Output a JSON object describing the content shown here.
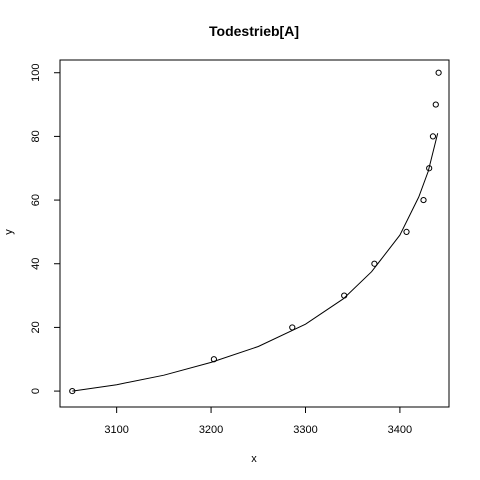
{
  "chart_data": {
    "type": "scatter",
    "title": "Todestrieb[A]",
    "xlabel": "x",
    "ylabel": "y",
    "xlim": [
      3040,
      3452
    ],
    "ylim": [
      -5,
      104
    ],
    "x_ticks": [
      3100,
      3200,
      3300,
      3400
    ],
    "y_ticks": [
      0,
      20,
      40,
      60,
      80,
      100
    ],
    "points": [
      {
        "x": 3053,
        "y": 0
      },
      {
        "x": 3203,
        "y": 10
      },
      {
        "x": 3286,
        "y": 20
      },
      {
        "x": 3341,
        "y": 30
      },
      {
        "x": 3373,
        "y": 40
      },
      {
        "x": 3407,
        "y": 50
      },
      {
        "x": 3425,
        "y": 60
      },
      {
        "x": 3431,
        "y": 70
      },
      {
        "x": 3435,
        "y": 80
      },
      {
        "x": 3438,
        "y": 90
      },
      {
        "x": 3441,
        "y": 100
      }
    ],
    "fit_curve": [
      {
        "x": 3053,
        "y": 0
      },
      {
        "x": 3100,
        "y": 2
      },
      {
        "x": 3150,
        "y": 5
      },
      {
        "x": 3200,
        "y": 9
      },
      {
        "x": 3250,
        "y": 14
      },
      {
        "x": 3300,
        "y": 21
      },
      {
        "x": 3340,
        "y": 29
      },
      {
        "x": 3370,
        "y": 37.5
      },
      {
        "x": 3400,
        "y": 49
      },
      {
        "x": 3420,
        "y": 61
      },
      {
        "x": 3430,
        "y": 69
      },
      {
        "x": 3440,
        "y": 81
      }
    ]
  }
}
